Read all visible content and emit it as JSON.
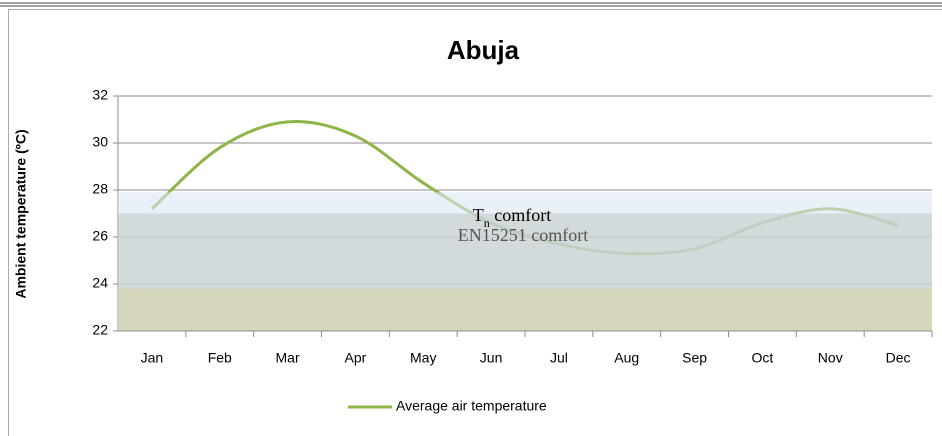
{
  "chart_data": {
    "type": "line",
    "title": "Abuja",
    "y_label": "Ambient temperature (ºC)",
    "categories": [
      "Jan",
      "Feb",
      "Mar",
      "Apr",
      "May",
      "Jun",
      "Jul",
      "Aug",
      "Sep",
      "Oct",
      "Nov",
      "Dec"
    ],
    "series": [
      {
        "name": "Average air temperature",
        "color": "#8db54a",
        "values": [
          27.2,
          29.8,
          30.9,
          30.3,
          28.3,
          26.6,
          25.7,
          25.3,
          25.5,
          26.6,
          27.2,
          26.5
        ]
      }
    ],
    "bands": [
      {
        "label": [
          "T",
          "n",
          " comfort"
        ],
        "range": [
          22,
          27.9
        ],
        "color": "#dce6f2"
      },
      {
        "label": [
          "EN15251 comfort"
        ],
        "range": [
          22,
          27.0
        ],
        "color": "#c3cbc9"
      },
      {
        "range": [
          22,
          23.8
        ],
        "color": "#d9d6a6"
      }
    ],
    "ylim": [
      22,
      32
    ],
    "yticks": [
      22,
      24,
      26,
      28,
      30,
      32
    ],
    "grid": true,
    "legend": "bottom"
  }
}
